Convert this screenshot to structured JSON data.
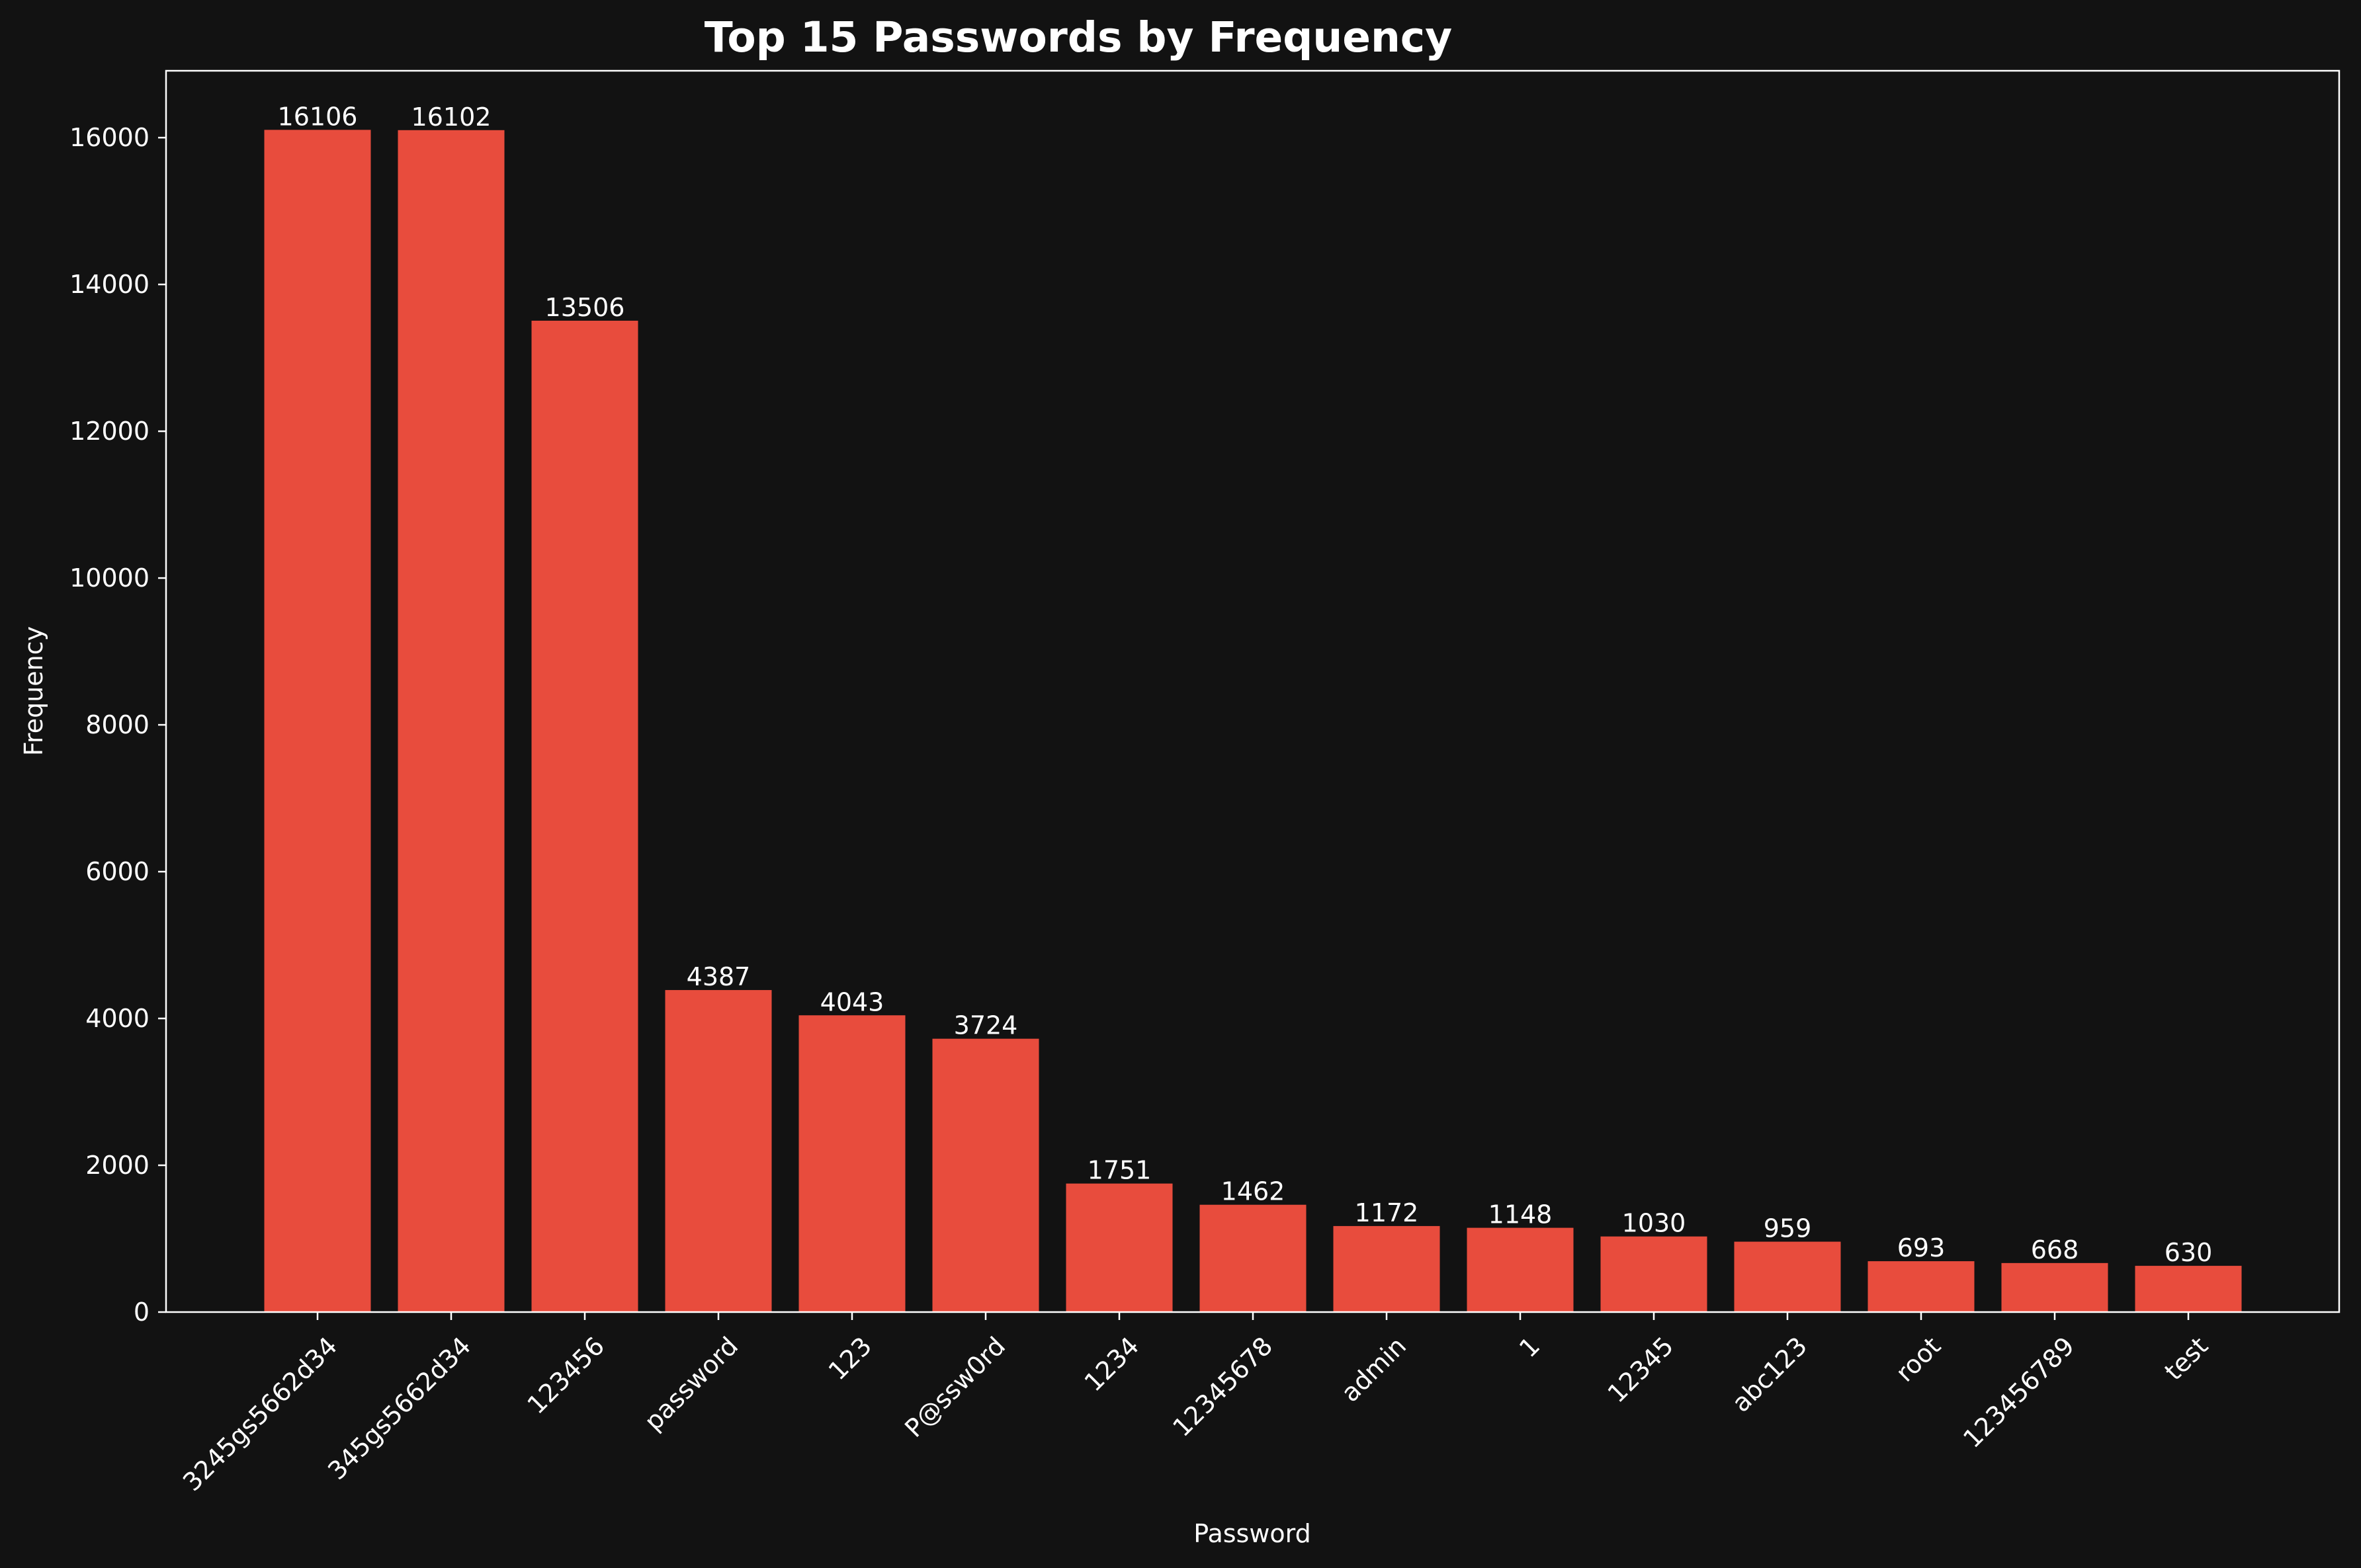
{
  "chart_data": {
    "type": "bar",
    "title": "Top 15 Passwords by Frequency",
    "xlabel": "Password",
    "ylabel": "Frequency",
    "categories": [
      "3245gs5662d34",
      "345gs5662d34",
      "123456",
      "password",
      "123",
      "P@ssw0rd",
      "1234",
      "12345678",
      "admin",
      "1",
      "12345",
      "abc123",
      "root",
      "123456789",
      "test"
    ],
    "values": [
      16106,
      16102,
      13506,
      4387,
      4043,
      3724,
      1751,
      1462,
      1172,
      1148,
      1030,
      959,
      693,
      668,
      630
    ],
    "ylim": [
      0,
      16911
    ],
    "yticks": [
      0,
      2000,
      4000,
      6000,
      8000,
      10000,
      12000,
      14000,
      16000
    ],
    "bar_color": "#e84c3d",
    "background_color": "#121212",
    "text_color": "#ffffff",
    "grid": false,
    "legend": "none"
  }
}
